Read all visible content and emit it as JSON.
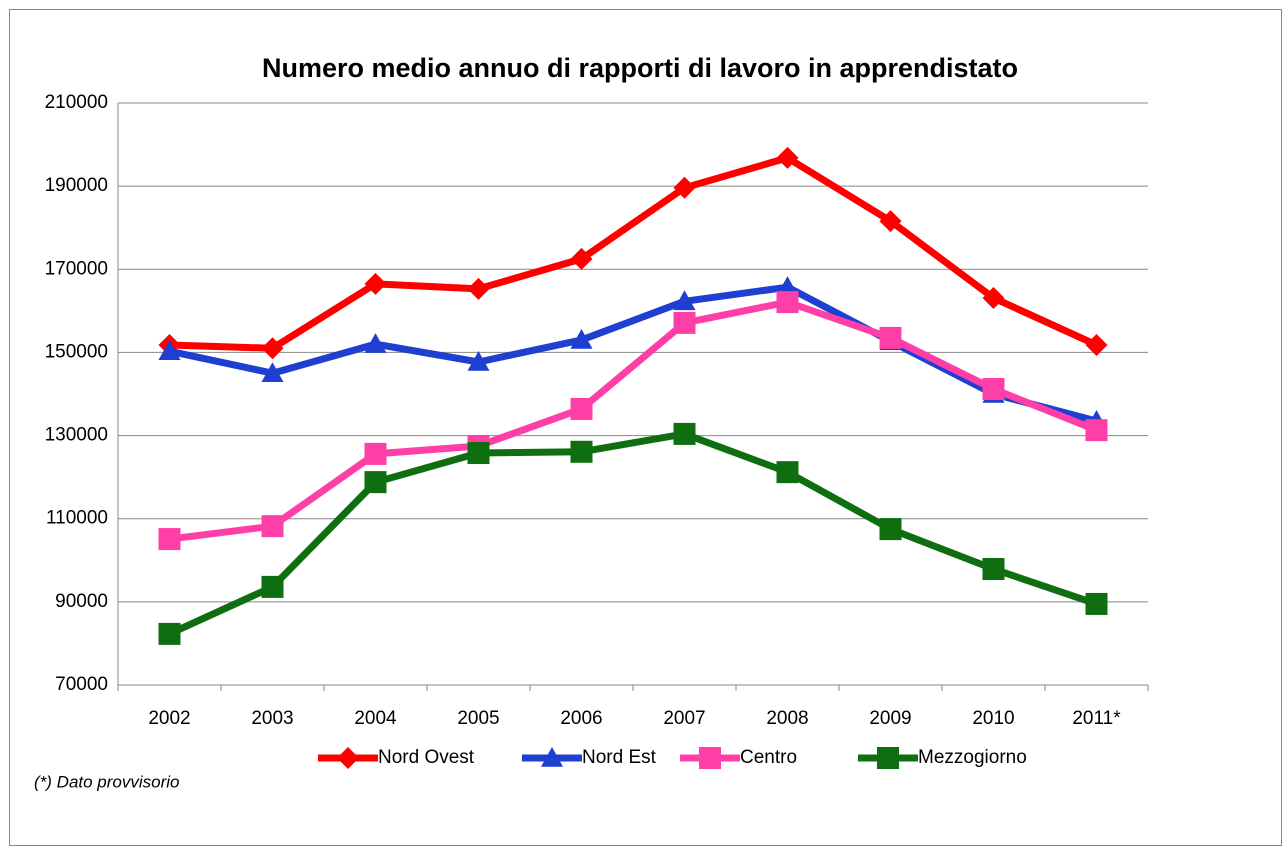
{
  "chart_data": {
    "type": "line",
    "title": "Numero medio annuo di rapporti di lavoro in apprendistato",
    "categories": [
      "2002",
      "2003",
      "2004",
      "2005",
      "2006",
      "2007",
      "2008",
      "2009",
      "2010",
      "2011*"
    ],
    "series": [
      {
        "name": "Nord Ovest",
        "color": "#ff0000",
        "marker": "diamond",
        "values": [
          151800,
          151000,
          166500,
          165300,
          172500,
          189600,
          196800,
          181600,
          163100,
          151800
        ]
      },
      {
        "name": "Nord Est",
        "color": "#1f3fd0",
        "marker": "triangle",
        "values": [
          150300,
          145000,
          152000,
          147700,
          153000,
          162300,
          165700,
          152700,
          140000,
          133500
        ]
      },
      {
        "name": "Centro",
        "color": "#ff3fa8",
        "marker": "square",
        "values": [
          105100,
          108200,
          125600,
          127500,
          136400,
          157100,
          162100,
          153500,
          141200,
          131300
        ]
      },
      {
        "name": "Mezzogiorno",
        "color": "#0f6e0f",
        "marker": "square",
        "values": [
          82300,
          93600,
          118800,
          125800,
          126100,
          130400,
          121200,
          107500,
          97900,
          89500
        ]
      }
    ],
    "ylim": [
      70000,
      210000
    ],
    "yticks": [
      70000,
      90000,
      110000,
      130000,
      150000,
      170000,
      190000,
      210000
    ],
    "grid": true,
    "legend": "bottom",
    "note": "(*) Dato provvisorio"
  }
}
